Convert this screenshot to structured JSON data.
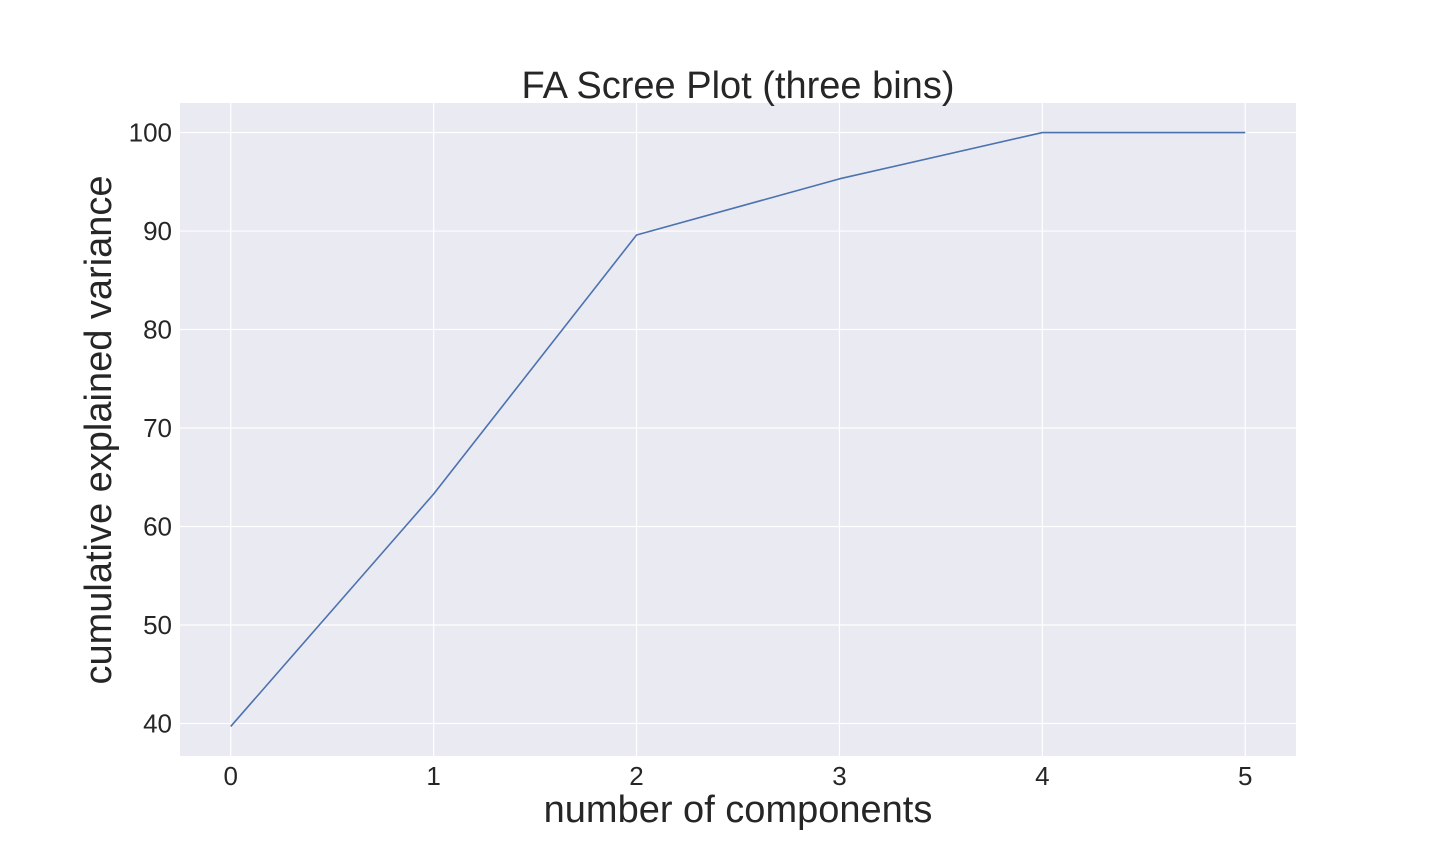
{
  "chart_data": {
    "type": "line",
    "title": "FA Scree Plot (three bins)",
    "xlabel": "number of components",
    "ylabel": "cumulative explained variance",
    "x": [
      0,
      1,
      2,
      3,
      4,
      5
    ],
    "series": [
      {
        "values": [
          39.7,
          63.3,
          89.6,
          95.3,
          100.0,
          100.0
        ]
      }
    ],
    "xticks": [
      "0",
      "1",
      "2",
      "3",
      "4",
      "5"
    ],
    "yticks": [
      "40",
      "50",
      "60",
      "70",
      "80",
      "90",
      "100"
    ],
    "xlim": [
      -0.25,
      5.25
    ],
    "ylim": [
      36.7,
      103.0
    ],
    "grid": true,
    "legend": "none",
    "colors": {
      "background": "#eaeaf2",
      "grid": "#ffffff",
      "line": "#4c72b0"
    }
  }
}
